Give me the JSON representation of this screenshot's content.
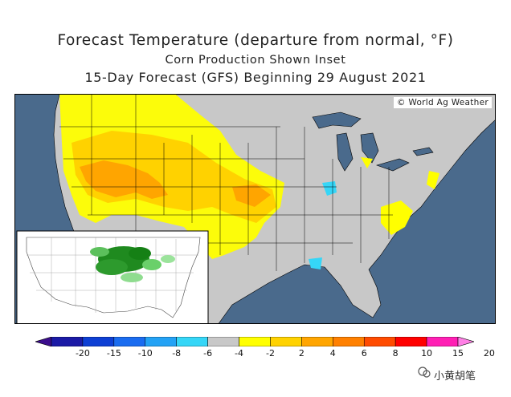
{
  "title": "Forecast Temperature (departure from normal, °F)",
  "subtitle": "Corn Production Shown Inset",
  "subtitle2": "15-Day Forecast (GFS) Beginning 29 August 2021",
  "credit": "© World Ag Weather",
  "legend": {
    "ticks": [
      "-20",
      "-15",
      "-10",
      "-8",
      "-6",
      "-4",
      "-2",
      "2",
      "4",
      "6",
      "8",
      "10",
      "15",
      "20"
    ],
    "colors": [
      "#3b0d8c",
      "#1b1aa6",
      "#0d3fd4",
      "#1a6cf0",
      "#23a2f5",
      "#35d6f7",
      "#c8c8c8",
      "#ffff00",
      "#ffd200",
      "#ffa500",
      "#ff8000",
      "#ff4b00",
      "#ff0000",
      "#ff1fb4",
      "#ff80e6"
    ]
  },
  "watermark": "小黄胡笔",
  "colors": {
    "ocean": "#4a6a8c",
    "land": "#c8c8c8",
    "warm1": "#ffff00",
    "warm2": "#ffd200",
    "warm3": "#ffa500",
    "cool": "#35d6f7"
  }
}
